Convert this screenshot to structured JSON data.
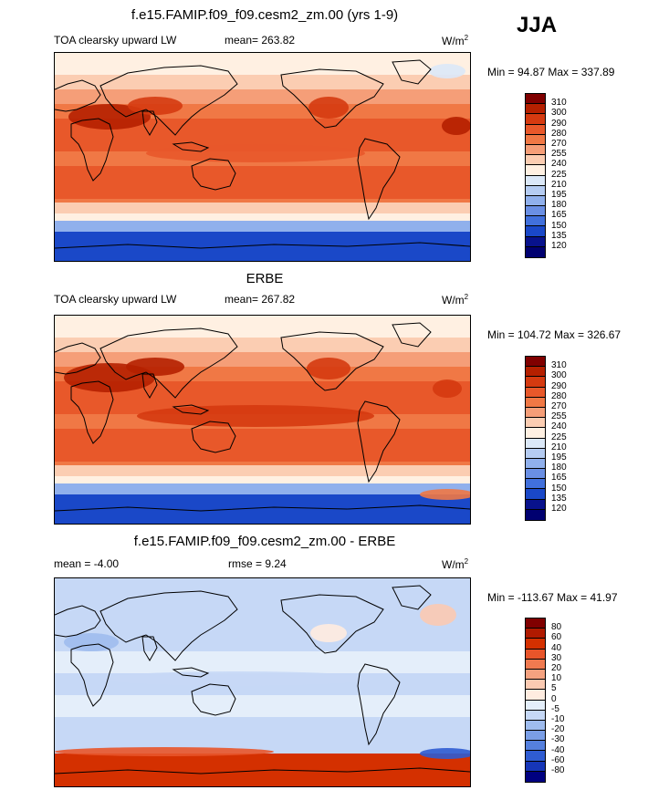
{
  "season": "JJA",
  "panel1": {
    "title": "f.e15.FAMIP.f09_f09.cesm2_zm.00 (yrs 1-9)",
    "left": "TOA clearsky upward LW",
    "stat": "mean= 263.82",
    "units": "W/m",
    "units_sup": "2",
    "minmax": "Min =  94.87 Max = 337.89",
    "levels": [
      "310",
      "300",
      "290",
      "280",
      "270",
      "255",
      "240",
      "225",
      "210",
      "195",
      "180",
      "165",
      "150",
      "135",
      "120"
    ]
  },
  "panel2": {
    "title": "ERBE",
    "left": "TOA clearsky upward LW",
    "stat": "mean= 267.82",
    "units": "W/m",
    "units_sup": "2",
    "minmax": "Min = 104.72 Max = 326.67",
    "levels": [
      "310",
      "300",
      "290",
      "280",
      "270",
      "255",
      "240",
      "225",
      "210",
      "195",
      "180",
      "165",
      "150",
      "135",
      "120"
    ]
  },
  "panel3": {
    "title": "f.e15.FAMIP.f09_f09.cesm2_zm.00 - ERBE",
    "left": "mean =  -4.00",
    "stat": "rmse =   9.24",
    "units": "W/m",
    "units_sup": "2",
    "minmax": "Min = -113.67 Max =  41.97",
    "levels": [
      "80",
      "60",
      "40",
      "30",
      "20",
      "10",
      "5",
      "0",
      "-5",
      "-10",
      "-20",
      "-30",
      "-40",
      "-60",
      "-80"
    ]
  },
  "colors": {
    "abs_scale": [
      "#800000",
      "#b52000",
      "#d53a10",
      "#e8582a",
      "#f07845",
      "#f59e78",
      "#fbcdb2",
      "#fff0e2",
      "#dbe8f8",
      "#b5ccf2",
      "#90b0ec",
      "#6a8fe4",
      "#4170dc",
      "#1a48c8",
      "#08128c",
      "#000070"
    ],
    "diff_scale": [
      "#800000",
      "#b01a00",
      "#d43000",
      "#e8552a",
      "#f07a50",
      "#f5a280",
      "#fbcab2",
      "#ffece0",
      "#e4eefa",
      "#c6d8f6",
      "#9fbcee",
      "#7a9ee6",
      "#5580de",
      "#2f5cd2",
      "#1636b8",
      "#000080"
    ]
  }
}
